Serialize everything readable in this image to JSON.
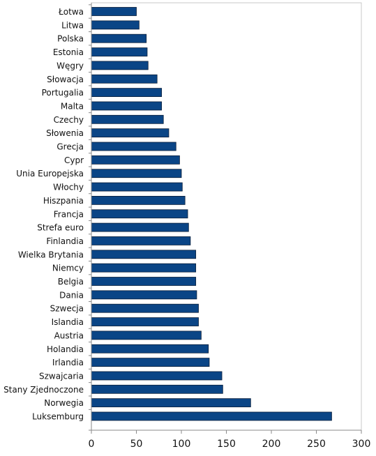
{
  "chart_data": {
    "type": "bar",
    "orientation": "horizontal",
    "title": "",
    "xlabel": "",
    "ylabel": "",
    "categories": [
      "Łotwa",
      "Litwa",
      "Polska",
      "Estonia",
      "Węgry",
      "Słowacja",
      "Portugalia",
      "Malta",
      "Czechy",
      "Słowenia",
      "Grecja",
      "Cypr",
      "Unia Europejska",
      "Włochy",
      "Hiszpania",
      "Francja",
      "Strefa euro",
      "Finlandia",
      "Wielka Brytania",
      "Niemcy",
      "Belgia",
      "Dania",
      "Szwecja",
      "Islandia",
      "Austria",
      "Holandia",
      "Irlandia",
      "Szwajcaria",
      "Stany Zjednoczone",
      "Norwegia",
      "Luksemburg"
    ],
    "values": [
      50,
      53,
      61,
      62,
      63,
      73,
      78,
      78,
      80,
      86,
      94,
      98,
      100,
      101,
      104,
      107,
      108,
      110,
      116,
      116,
      116,
      117,
      119,
      119,
      122,
      130,
      131,
      145,
      146,
      177,
      267
    ],
    "xlim": [
      0,
      300
    ],
    "xticks": [
      0,
      50,
      100,
      150,
      200,
      250,
      300
    ],
    "grid": false,
    "legend": "none",
    "colors": {
      "bar_fill": "#0a4586",
      "bar_stroke": "#0b1f3a",
      "axis": "#8a8a8a",
      "frame": "#c8c8c8",
      "text": "#111111"
    }
  }
}
